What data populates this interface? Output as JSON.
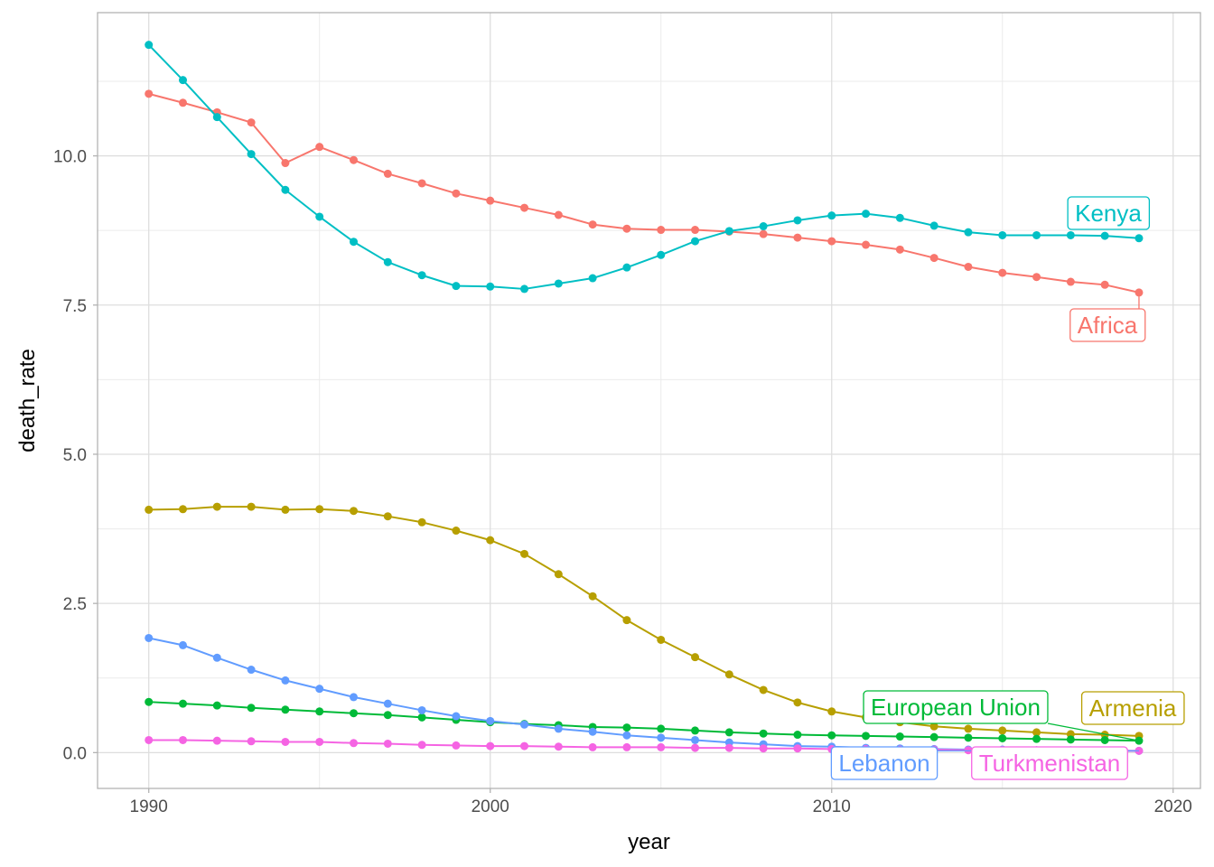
{
  "chart_data": {
    "type": "line",
    "title": "",
    "xlabel": "year",
    "ylabel": "death_rate",
    "xlim": [
      1988.5,
      2020.8
    ],
    "ylim": [
      -0.6,
      12.4
    ],
    "x_ticks": [
      1990,
      2000,
      2010,
      2020
    ],
    "x_tick_labels": [
      "1990",
      "2000",
      "2010",
      "2020"
    ],
    "y_ticks": [
      0,
      2.5,
      5,
      7.5,
      10
    ],
    "y_tick_labels": [
      "0.0",
      "2.5",
      "5.0",
      "7.5",
      "10.0"
    ],
    "grid": true,
    "legend": "none (direct labels at line ends)",
    "x": [
      1990,
      1991,
      1992,
      1993,
      1994,
      1995,
      1996,
      1997,
      1998,
      1999,
      2000,
      2001,
      2002,
      2003,
      2004,
      2005,
      2006,
      2007,
      2008,
      2009,
      2010,
      2011,
      2012,
      2013,
      2014,
      2015,
      2016,
      2017,
      2018,
      2019
    ],
    "series": [
      {
        "name": "Africa",
        "color": "#F8766D",
        "values": [
          11.04,
          10.89,
          10.73,
          10.56,
          9.88,
          10.15,
          9.93,
          9.7,
          9.54,
          9.37,
          9.25,
          9.13,
          9.01,
          8.85,
          8.78,
          8.76,
          8.76,
          8.73,
          8.69,
          8.63,
          8.57,
          8.51,
          8.43,
          8.29,
          8.14,
          8.04,
          7.97,
          7.89,
          7.84,
          7.71
        ]
      },
      {
        "name": "Armenia",
        "color": "#B79F00",
        "values": [
          4.07,
          4.08,
          4.12,
          4.12,
          4.07,
          4.08,
          4.05,
          3.96,
          3.86,
          3.72,
          3.56,
          3.33,
          2.99,
          2.62,
          2.22,
          1.89,
          1.6,
          1.31,
          1.05,
          0.84,
          0.69,
          0.59,
          0.51,
          0.44,
          0.4,
          0.37,
          0.34,
          0.31,
          0.3,
          0.28
        ]
      },
      {
        "name": "European Union",
        "color": "#00BA38",
        "values": [
          0.85,
          0.82,
          0.79,
          0.75,
          0.72,
          0.69,
          0.66,
          0.63,
          0.59,
          0.55,
          0.51,
          0.48,
          0.46,
          0.43,
          0.42,
          0.4,
          0.37,
          0.34,
          0.32,
          0.3,
          0.29,
          0.28,
          0.27,
          0.26,
          0.25,
          0.24,
          0.23,
          0.22,
          0.21,
          0.2
        ]
      },
      {
        "name": "Kenya",
        "color": "#00BFC4",
        "values": [
          11.86,
          11.27,
          10.65,
          10.03,
          9.43,
          8.98,
          8.56,
          8.22,
          8.0,
          7.82,
          7.81,
          7.77,
          7.86,
          7.95,
          8.13,
          8.34,
          8.57,
          8.74,
          8.82,
          8.92,
          9.0,
          9.03,
          8.96,
          8.83,
          8.72,
          8.67,
          8.67,
          8.67,
          8.66,
          8.62
        ]
      },
      {
        "name": "Lebanon",
        "color": "#619CFF",
        "values": [
          1.92,
          1.8,
          1.59,
          1.39,
          1.21,
          1.07,
          0.93,
          0.82,
          0.71,
          0.61,
          0.53,
          0.47,
          0.4,
          0.35,
          0.29,
          0.25,
          0.21,
          0.17,
          0.14,
          0.11,
          0.1,
          0.08,
          0.07,
          0.06,
          0.05,
          0.05,
          0.04,
          0.04,
          0.03,
          0.03
        ]
      },
      {
        "name": "Turkmenistan",
        "color": "#F564E3",
        "values": [
          0.21,
          0.21,
          0.2,
          0.19,
          0.18,
          0.18,
          0.16,
          0.15,
          0.13,
          0.12,
          0.11,
          0.11,
          0.1,
          0.09,
          0.09,
          0.09,
          0.08,
          0.08,
          0.07,
          0.07,
          0.06,
          0.06,
          0.05,
          0.05,
          0.04,
          0.04,
          0.04,
          0.03,
          0.03,
          0.03
        ]
      }
    ]
  }
}
